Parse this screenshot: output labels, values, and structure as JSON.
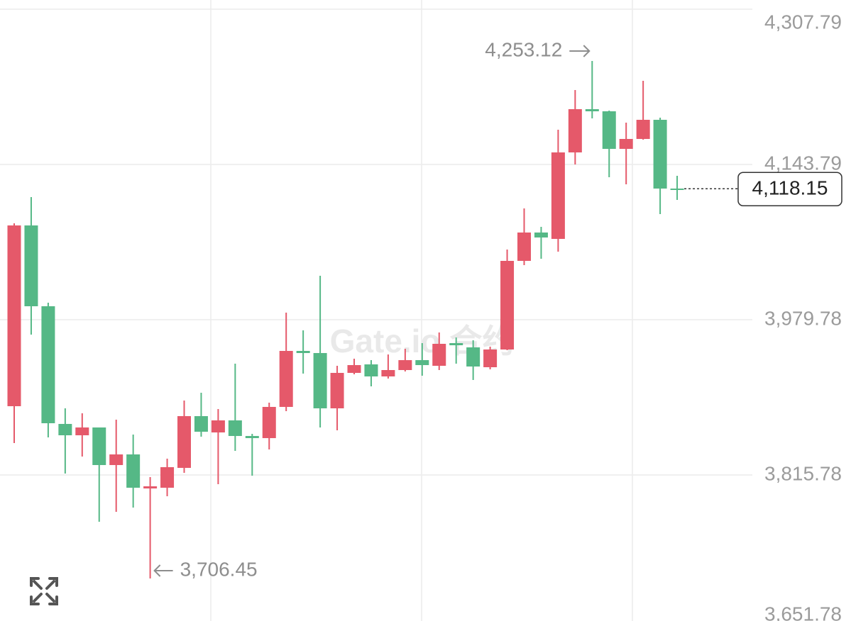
{
  "chart_data": {
    "type": "candlestick",
    "up_color": "#e5596a",
    "down_color": "#55b886",
    "open": [
      3888.42,
      4079.38,
      3994.01,
      3869.69,
      3857.71,
      3865.95,
      3826.26,
      3837.49,
      3801.54,
      3802.29,
      3823.26,
      3877.93,
      3860.71,
      3873.44,
      3856.96,
      3854.71,
      3887.67,
      3946.83,
      3944.58,
      3886.17,
      3923.61,
      3932.6,
      3919.87,
      3926.61,
      3937.09,
      3931.1,
      3955.07,
      3950.57,
      3929.6,
      3948.33,
      4041.94,
      4071.9,
      4065.16,
      4156.52,
      4202.2,
      4199.96,
      4160.27,
      4170.75,
      4190.97,
      4118.33
    ],
    "high": [
      4081.63,
      4109.34,
      3997.75,
      3886.17,
      3880.93,
      3865.95,
      3874.19,
      3858.46,
      3813.53,
      3833.0,
      3894.41,
      3902.64,
      3885.42,
      3933.35,
      3859.21,
      3892.16,
      3987.27,
      3968.55,
      4026.21,
      3931.1,
      3938.59,
      3937.09,
      3943.08,
      3949.08,
      3955.07,
      3966.3,
      3961.06,
      3958.06,
      3951.32,
      4053.92,
      4097.36,
      4077.89,
      4180.49,
      4222.42,
      4253.12,
      4200.71,
      4187.98,
      4232.16,
      4193.22,
      4131.81
    ],
    "low": [
      3849.47,
      3964.05,
      3855.46,
      3817.27,
      3835.24,
      3766.34,
      3776.83,
      3781.32,
      3706.45,
      3793.3,
      3818.02,
      3856.21,
      3806.04,
      3841.23,
      3815.02,
      3842.73,
      3883.17,
      3922.86,
      3865.95,
      3862.95,
      3922.12,
      3909.38,
      3917.62,
      3925.11,
      3920.62,
      3926.61,
      3933.35,
      3916.12,
      3927.36,
      3947.58,
      4037.45,
      4044.19,
      4051.68,
      4143.79,
      4192.47,
      4130.31,
      4122.82,
      4170.0,
      4091.37,
      4106.34
    ],
    "close": [
      4079.38,
      3994.01,
      3870.44,
      3857.71,
      3865.95,
      3826.26,
      3837.49,
      3802.29,
      3803.79,
      3824.01,
      3877.93,
      3861.45,
      3873.44,
      3856.96,
      3854.71,
      3887.67,
      3946.83,
      3944.58,
      3886.17,
      3923.61,
      3931.85,
      3919.87,
      3926.61,
      3937.09,
      3931.85,
      3954.32,
      3952.82,
      3930.35,
      3948.33,
      4041.94,
      4071.9,
      4066.65,
      4156.52,
      4202.2,
      4199.96,
      4160.27,
      4170.75,
      4190.97,
      4118.33,
      4118.15
    ],
    "ylim": [
      3651.78,
      4307.79
    ],
    "yticks": [
      {
        "value": 4307.79,
        "label": "4,307.79"
      },
      {
        "value": 4143.79,
        "label": "4,143.79"
      },
      {
        "value": 3979.78,
        "label": "3,979.78"
      },
      {
        "value": 3815.78,
        "label": "3,815.78"
      },
      {
        "value": 3651.78,
        "label": "3,651.78"
      }
    ],
    "grid": true,
    "high_label": {
      "value": 4253.12,
      "label": "4,253.12"
    },
    "low_label": {
      "value": 3706.45,
      "label": "3,706.45"
    },
    "last_label": {
      "value": 4118.15,
      "label": "4,118.15"
    },
    "watermark": "Gate.io 合约"
  }
}
